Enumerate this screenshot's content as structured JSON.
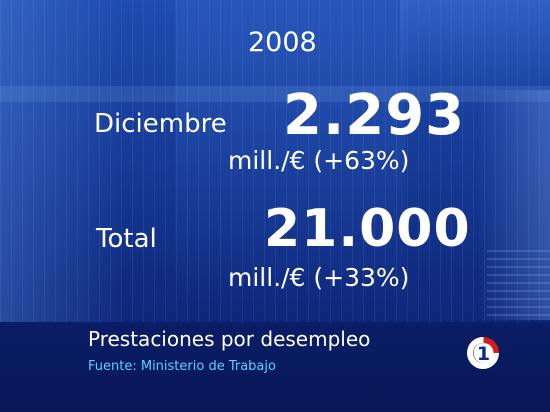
{
  "year": "2008",
  "rows": [
    {
      "label": "Diciembre",
      "value": "2.293",
      "unit": "mill./€ (+63%)"
    },
    {
      "label": "Total",
      "value": "21.000",
      "unit": "mill./€ (+33%)"
    }
  ],
  "caption": {
    "title": "Prestaciones por desempleo",
    "source": "Fuente: Ministerio de Trabajo"
  },
  "logo": {
    "icon": "la1-channel-logo-icon",
    "text": "1",
    "colors": {
      "circle": "#ffffff",
      "accent": "#d81a1a",
      "digit": "#0b2a8a"
    }
  },
  "colors": {
    "background": "#173c98",
    "text": "#ffffff",
    "source_text": "#5fd0ff"
  }
}
